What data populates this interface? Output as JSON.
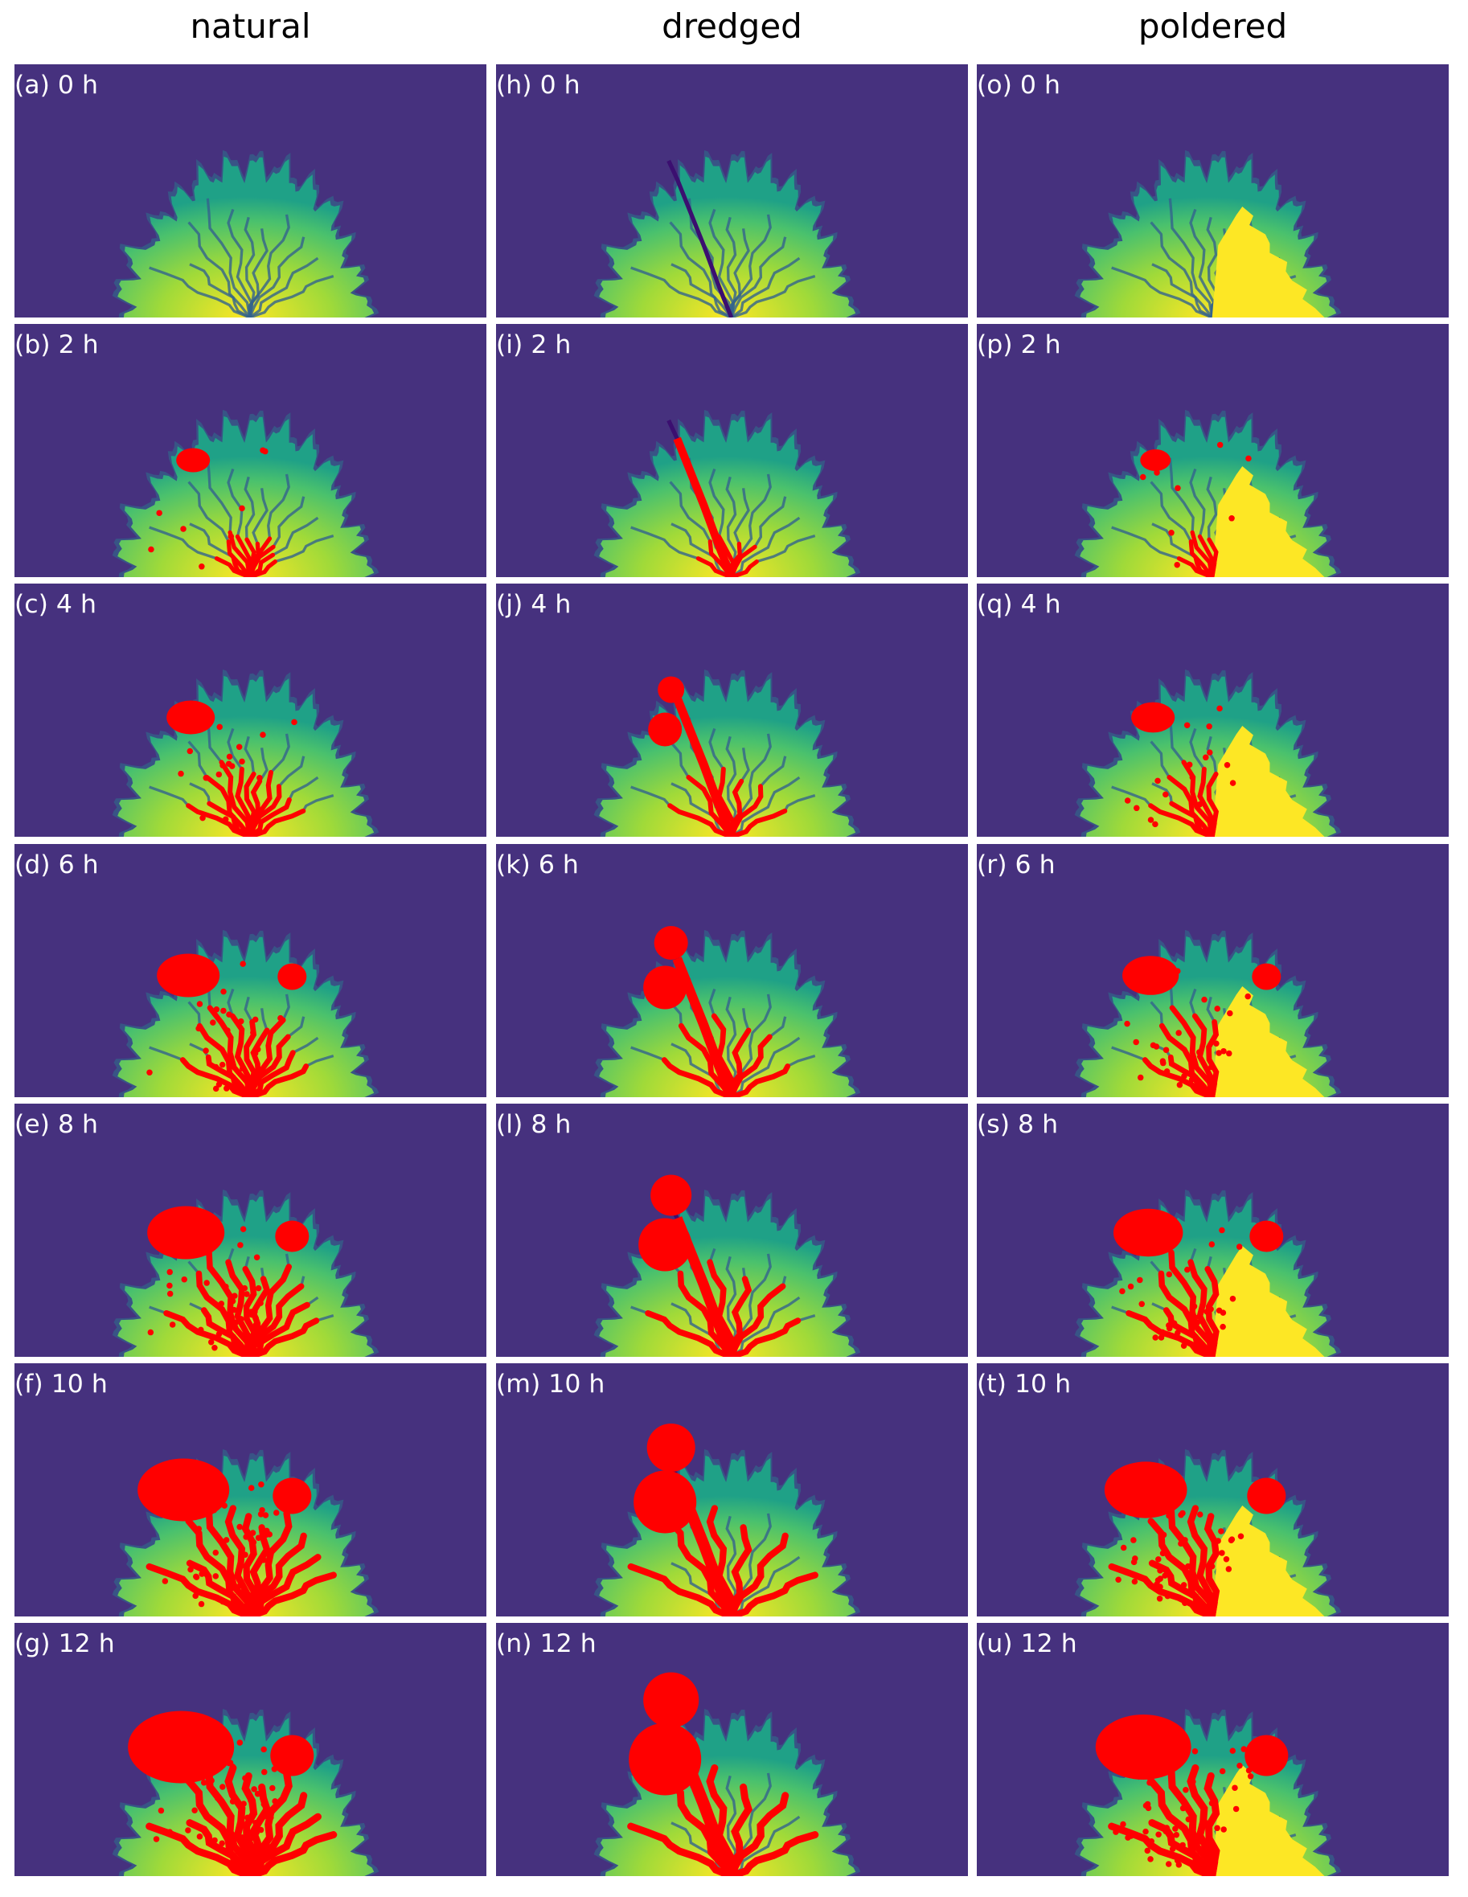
{
  "columns": [
    "natural",
    "dredged",
    "poldered"
  ],
  "panels": [
    [
      "(a) 0 h",
      "(b) 2 h",
      "(c) 4 h",
      "(d) 6 h",
      "(e) 8 h",
      "(f) 10 h",
      "(g) 12 h"
    ],
    [
      "(h) 0 h",
      "(i) 2 h",
      "(j) 4 h",
      "(k) 6 h",
      "(l) 8 h",
      "(m) 10 h",
      "(n) 12 h"
    ],
    [
      "(o) 0 h",
      "(p) 2 h",
      "(q) 4 h",
      "(r) 6 h",
      "(s) 8 h",
      "(t) 10 h",
      "(u) 12 h"
    ]
  ]
}
